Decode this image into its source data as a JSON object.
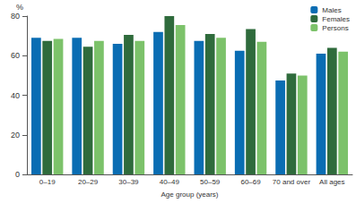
{
  "chart_data": {
    "type": "bar",
    "xlabel": "Age group (years)",
    "ylabel": "%",
    "categories": [
      "0–19",
      "20–29",
      "30–39",
      "40–49",
      "50–59",
      "60–69",
      "70 and over",
      "All ages"
    ],
    "series": [
      {
        "name": "Males",
        "color": "#0a6db3",
        "values": [
          69,
          69,
          66,
          72,
          67.5,
          62.5,
          47.5,
          61
        ]
      },
      {
        "name": "Females",
        "color": "#2f6b3c",
        "values": [
          67.5,
          64.5,
          70.5,
          80,
          71,
          73.5,
          51,
          64
        ]
      },
      {
        "name": "Persons",
        "color": "#7cc26a",
        "values": [
          68.5,
          67.5,
          67.5,
          75.5,
          69,
          67,
          50,
          62
        ]
      }
    ],
    "ylim": [
      0,
      80
    ],
    "yticks": [
      0,
      20,
      40,
      60,
      80
    ],
    "grid": false,
    "legend": "top-right"
  }
}
